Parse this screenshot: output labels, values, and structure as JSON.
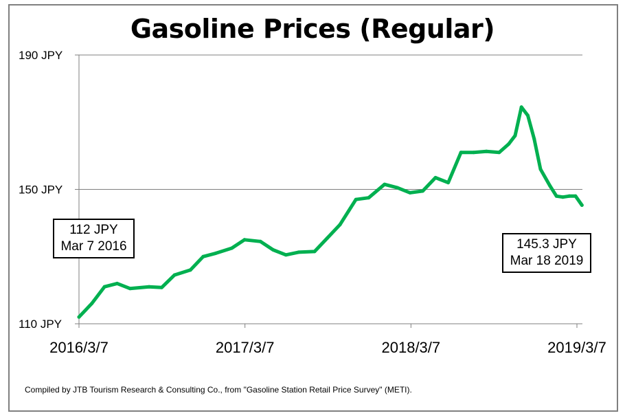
{
  "chart_data": {
    "type": "line",
    "title": "Gasoline Prices (Regular)",
    "ylim": [
      110,
      190
    ],
    "y_ticks": [
      "190 JPY",
      "150 JPY",
      "110 JPY"
    ],
    "y_tick_values": [
      190,
      150,
      110
    ],
    "x_ticks": [
      "2016/3/7",
      "2017/3/7",
      "2018/3/7",
      "2019/3/7"
    ],
    "x_tick_dates": [
      "2016-03-07",
      "2017-03-07",
      "2018-03-07",
      "2019-03-07"
    ],
    "grid": true,
    "series": [
      {
        "color": "#00b050",
        "x": [
          "2016-03-07",
          "2016-04-04",
          "2016-05-02",
          "2016-05-30",
          "2016-06-27",
          "2016-08-08",
          "2016-09-05",
          "2016-10-03",
          "2016-11-07",
          "2016-12-05",
          "2017-01-02",
          "2017-02-06",
          "2017-03-06",
          "2017-04-10",
          "2017-05-08",
          "2017-06-05",
          "2017-07-03",
          "2017-08-07",
          "2017-09-04",
          "2017-10-02",
          "2017-11-06",
          "2017-12-04",
          "2018-01-08",
          "2018-02-05",
          "2018-03-05",
          "2018-04-02",
          "2018-04-30",
          "2018-05-28",
          "2018-06-25",
          "2018-07-23",
          "2018-08-20",
          "2018-09-17",
          "2018-10-08",
          "2018-10-22",
          "2018-11-05",
          "2018-11-19",
          "2018-12-03",
          "2018-12-17",
          "2019-01-07",
          "2019-01-21",
          "2019-02-04",
          "2019-02-18",
          "2019-03-04",
          "2019-03-18"
        ],
        "values": [
          112,
          116,
          121,
          122,
          120.5,
          121,
          120.8,
          124.5,
          126,
          130,
          131,
          132.5,
          135,
          134.5,
          132,
          130.5,
          131.3,
          131.5,
          135.5,
          139.5,
          147,
          147.5,
          151.5,
          150.5,
          149,
          149.5,
          153.5,
          152,
          161,
          161,
          161.3,
          161,
          163.5,
          166,
          174.5,
          172,
          165,
          156,
          151,
          148,
          147.7,
          148,
          148,
          145.3
        ]
      }
    ],
    "annotations": [
      {
        "line1": "112 JPY",
        "line2": "Mar 7 2016"
      },
      {
        "line1": "145.3 JPY",
        "line2": "Mar 18 2019"
      }
    ]
  },
  "source_note": "Compiled by JTB Tourism Research & Consulting Co., from \"Gasoline Station Retail Price Survey\" (METI)."
}
